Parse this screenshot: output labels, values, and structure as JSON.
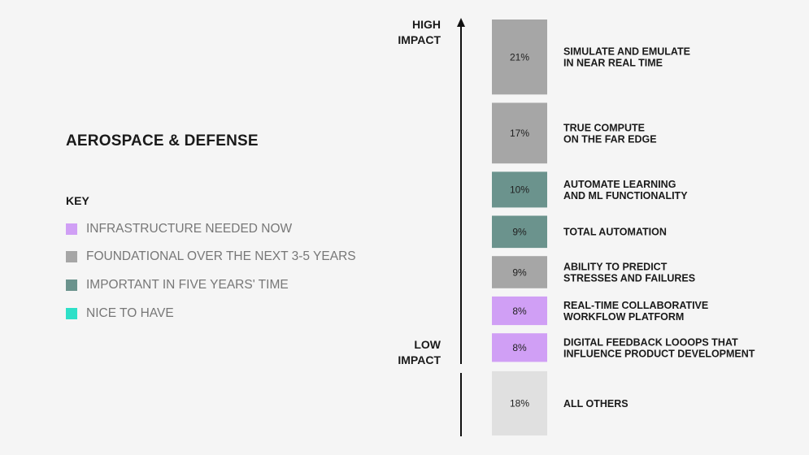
{
  "title": "AEROSPACE & DEFENSE",
  "key": {
    "heading": "KEY",
    "items": [
      {
        "label": "INFRASTRUCTURE NEEDED NOW",
        "color": "#d09ff5"
      },
      {
        "label": "FOUNDATIONAL OVER THE NEXT 3-5 YEARS",
        "color": "#a6a6a6"
      },
      {
        "label": "IMPORTANT IN FIVE YEARS' TIME",
        "color": "#6b938d"
      },
      {
        "label": "NICE TO HAVE",
        "color": "#2ee0c8"
      }
    ]
  },
  "axis": {
    "high_line1": "HIGH",
    "high_line2": "IMPACT",
    "low_line1": "LOW",
    "low_line2": "IMPACT"
  },
  "chart_data": {
    "type": "bar",
    "orientation": "vertical stack, ranked by impact",
    "categories": [
      [
        "SIMULATE AND EMULATE",
        "IN NEAR REAL TIME"
      ],
      [
        "TRUE COMPUTE",
        "ON THE FAR EDGE"
      ],
      [
        "AUTOMATE LEARNING",
        "AND ML FUNCTIONALITY"
      ],
      [
        "TOTAL AUTOMATION"
      ],
      [
        "ABILITY TO PREDICT",
        "STRESSES AND FAILURES"
      ],
      [
        "REAL-TIME COLLABORATIVE",
        "WORKFLOW PLATFORM"
      ],
      [
        "DIGITAL FEEDBACK LOOOPS THAT",
        "INFLUENCE PRODUCT DEVELOPMENT"
      ],
      [
        "ALL OTHERS"
      ]
    ],
    "values": [
      21,
      17,
      10,
      9,
      9,
      8,
      8,
      18
    ],
    "value_labels": [
      "21%",
      "17%",
      "10%",
      "9%",
      "9%",
      "8%",
      "8%",
      "18%"
    ],
    "colors": [
      "#a6a6a6",
      "#a6a6a6",
      "#6b938d",
      "#6b938d",
      "#a6a6a6",
      "#d09ff5",
      "#d09ff5",
      "#e0e0e0"
    ]
  }
}
